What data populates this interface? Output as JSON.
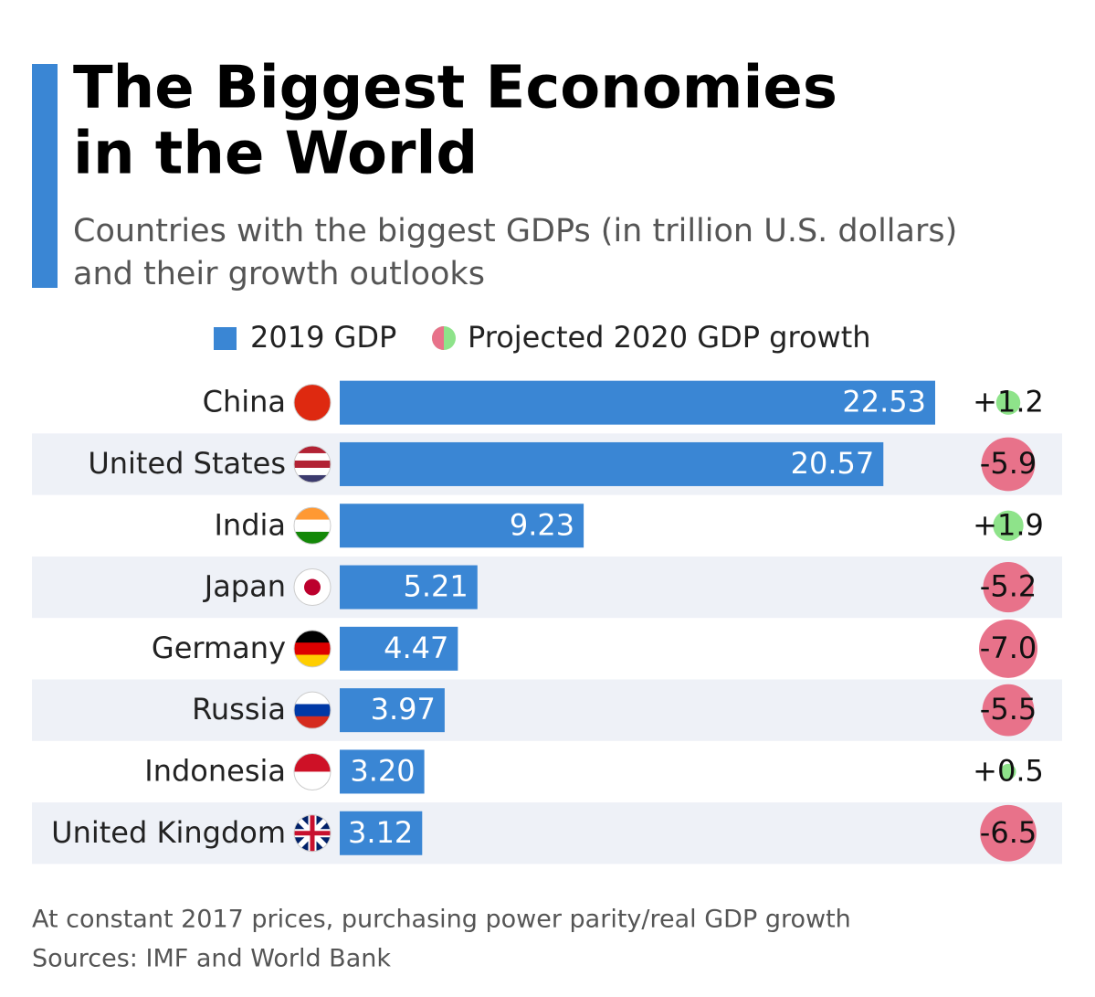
{
  "chart_data": {
    "type": "bar",
    "title": [
      "The Biggest Economies",
      "in the World"
    ],
    "subtitle": [
      "Countries with the biggest GDPs (in trillion U.S. dollars)",
      "and their growth outlooks"
    ],
    "categories": [
      "China",
      "United States",
      "India",
      "Japan",
      "Germany",
      "Russia",
      "Indonesia",
      "United Kingdom"
    ],
    "series": [
      {
        "name": "2019 GDP",
        "color": "#3a86d4",
        "values": [
          22.53,
          20.57,
          9.23,
          5.21,
          4.47,
          3.97,
          3.2,
          3.12
        ],
        "value_labels": [
          "22.53",
          "20.57",
          "9.23",
          "5.21",
          "4.47",
          "3.97",
          "3.20",
          "3.12"
        ]
      },
      {
        "name": "Projected 2020 GDP growth",
        "color": [
          "#8ee38a",
          "#e8728a"
        ],
        "values": [
          1.2,
          -5.9,
          1.9,
          -5.2,
          -7.0,
          -5.5,
          0.5,
          -6.5
        ],
        "value_labels": [
          "+1.2",
          "-5.9",
          "+1.9",
          "-5.2",
          "-7.0",
          "-5.5",
          "+0.5",
          "-6.5"
        ]
      }
    ],
    "notes": [
      "At constant 2017 prices, purchasing power parity/real GDP growth",
      "Sources: IMF and World Bank"
    ]
  }
}
